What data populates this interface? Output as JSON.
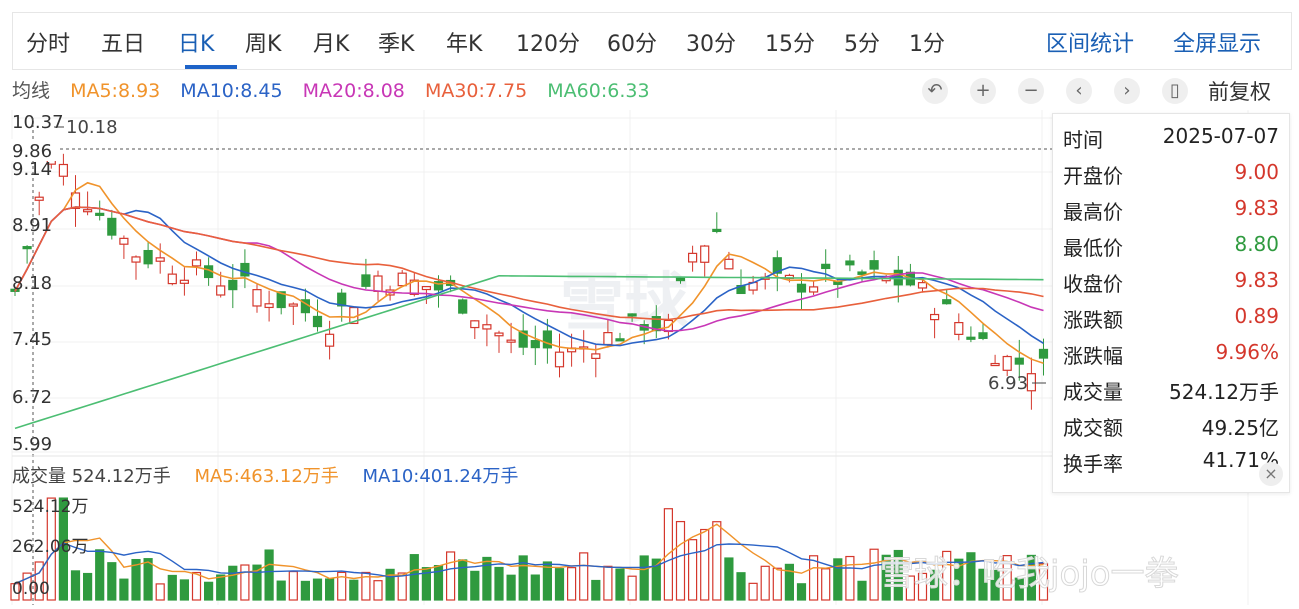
{
  "periods": [
    "分时",
    "五日",
    "日K",
    "周K",
    "月K",
    "季K",
    "年K",
    "120分",
    "60分",
    "30分",
    "15分",
    "5分",
    "1分"
  ],
  "active_period": "日K",
  "right_links": [
    "区间统计",
    "全屏显示"
  ],
  "ma_legend": {
    "label": "均线",
    "items": [
      {
        "text": "MA5:8.93",
        "color": "#f0932b"
      },
      {
        "text": "MA10:8.45",
        "color": "#2b63c6"
      },
      {
        "text": "MA20:8.08",
        "color": "#c837b6"
      },
      {
        "text": "MA30:7.75",
        "color": "#e8603c"
      },
      {
        "text": "MA60:6.33",
        "color": "#4cbe73"
      }
    ]
  },
  "controls": {
    "undo": "↶",
    "zoom_in": "+",
    "zoom_out": "−",
    "prev": "‹",
    "next": "›",
    "pin": "▯",
    "fq_label": "前复权"
  },
  "price_axis": [
    "10.37",
    "9.86",
    "9.14",
    "8.91",
    "8.18",
    "7.45",
    "6.72",
    "5.99"
  ],
  "annotations": {
    "high_label": "10.18",
    "low_label": "6.93",
    "crosshair_price": "9.86"
  },
  "info_panel": {
    "rows": [
      {
        "k": "时间",
        "v": "2025-07-07",
        "color": "#222"
      },
      {
        "k": "开盘价",
        "v": "9.00",
        "color": "#d4372c"
      },
      {
        "k": "最高价",
        "v": "9.83",
        "color": "#d4372c"
      },
      {
        "k": "最低价",
        "v": "8.80",
        "color": "#2f9a3f"
      },
      {
        "k": "收盘价",
        "v": "9.83",
        "color": "#d4372c"
      },
      {
        "k": "涨跌额",
        "v": "0.89",
        "color": "#d4372c"
      },
      {
        "k": "涨跌幅",
        "v": "9.96%",
        "color": "#d4372c"
      },
      {
        "k": "成交量",
        "v": "524.12万手",
        "color": "#222"
      },
      {
        "k": "成交额",
        "v": "49.25亿",
        "color": "#222"
      },
      {
        "k": "换手率",
        "v": "41.71%",
        "color": "#222"
      }
    ],
    "close": "×"
  },
  "volume_legend": {
    "vol": "成交量 524.12万手",
    "ma5": "MA5:463.12万手",
    "ma10": "MA10:401.24万手"
  },
  "volume_axis": [
    "524.12万",
    "262.06万",
    "0.00"
  ],
  "watermark": "雪球：吃我jojo一拳",
  "colors": {
    "up": "#d4372c",
    "down": "#2f9a3f",
    "accent": "#1a5fb4"
  }
}
